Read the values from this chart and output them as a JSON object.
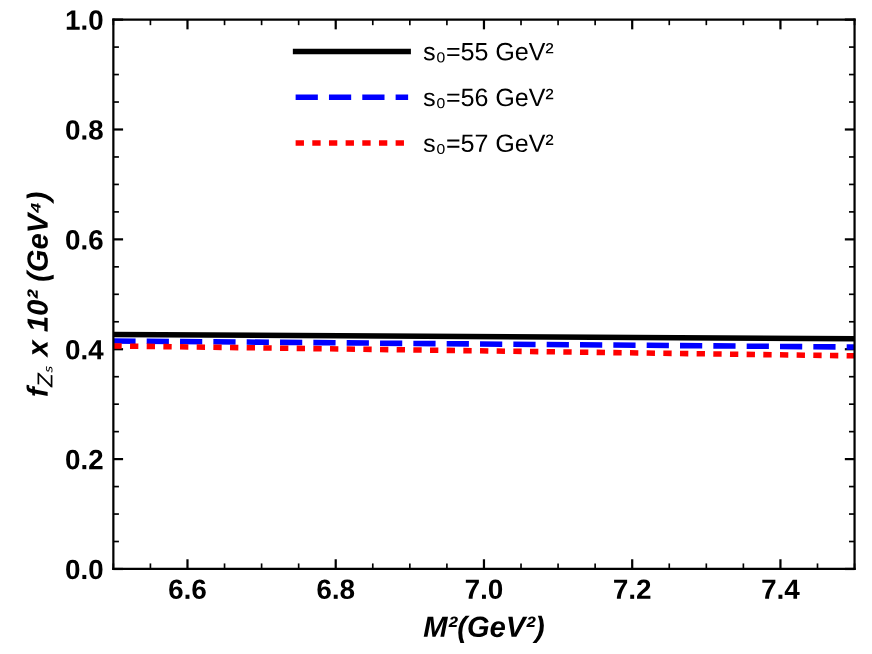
{
  "chart_data": {
    "type": "line",
    "xlabel": "M²(GeV²)",
    "ylabel": "f$_{Zₛ}$ x 10² (GeV⁴)",
    "x": [
      6.5,
      7.5
    ],
    "series": [
      {
        "name": "s₀=55 GeV²",
        "color": "#000000",
        "values": [
          0.427,
          0.419
        ],
        "line_style": "solid"
      },
      {
        "name": "s₀=56 GeV²",
        "color": "#0000ff",
        "values": [
          0.415,
          0.404
        ],
        "line_style": "dashed"
      },
      {
        "name": "s₀=57 GeV²",
        "color": "#ff0000",
        "values": [
          0.406,
          0.388
        ],
        "line_style": "dotted"
      }
    ],
    "xlim": [
      6.5,
      7.5
    ],
    "xticks": [
      6.6,
      6.8,
      {
        "value": 7,
        "label": "7.0"
      },
      7.2,
      7.4
    ],
    "ylim": [
      0.0,
      1.0
    ],
    "yticks": [
      {
        "value": 0,
        "label": "0.0"
      },
      0.2,
      0.4,
      0.6,
      0.8,
      {
        "value": 1,
        "label": "1.0"
      }
    ],
    "grid": false,
    "legend": "top",
    "marker": "none"
  }
}
